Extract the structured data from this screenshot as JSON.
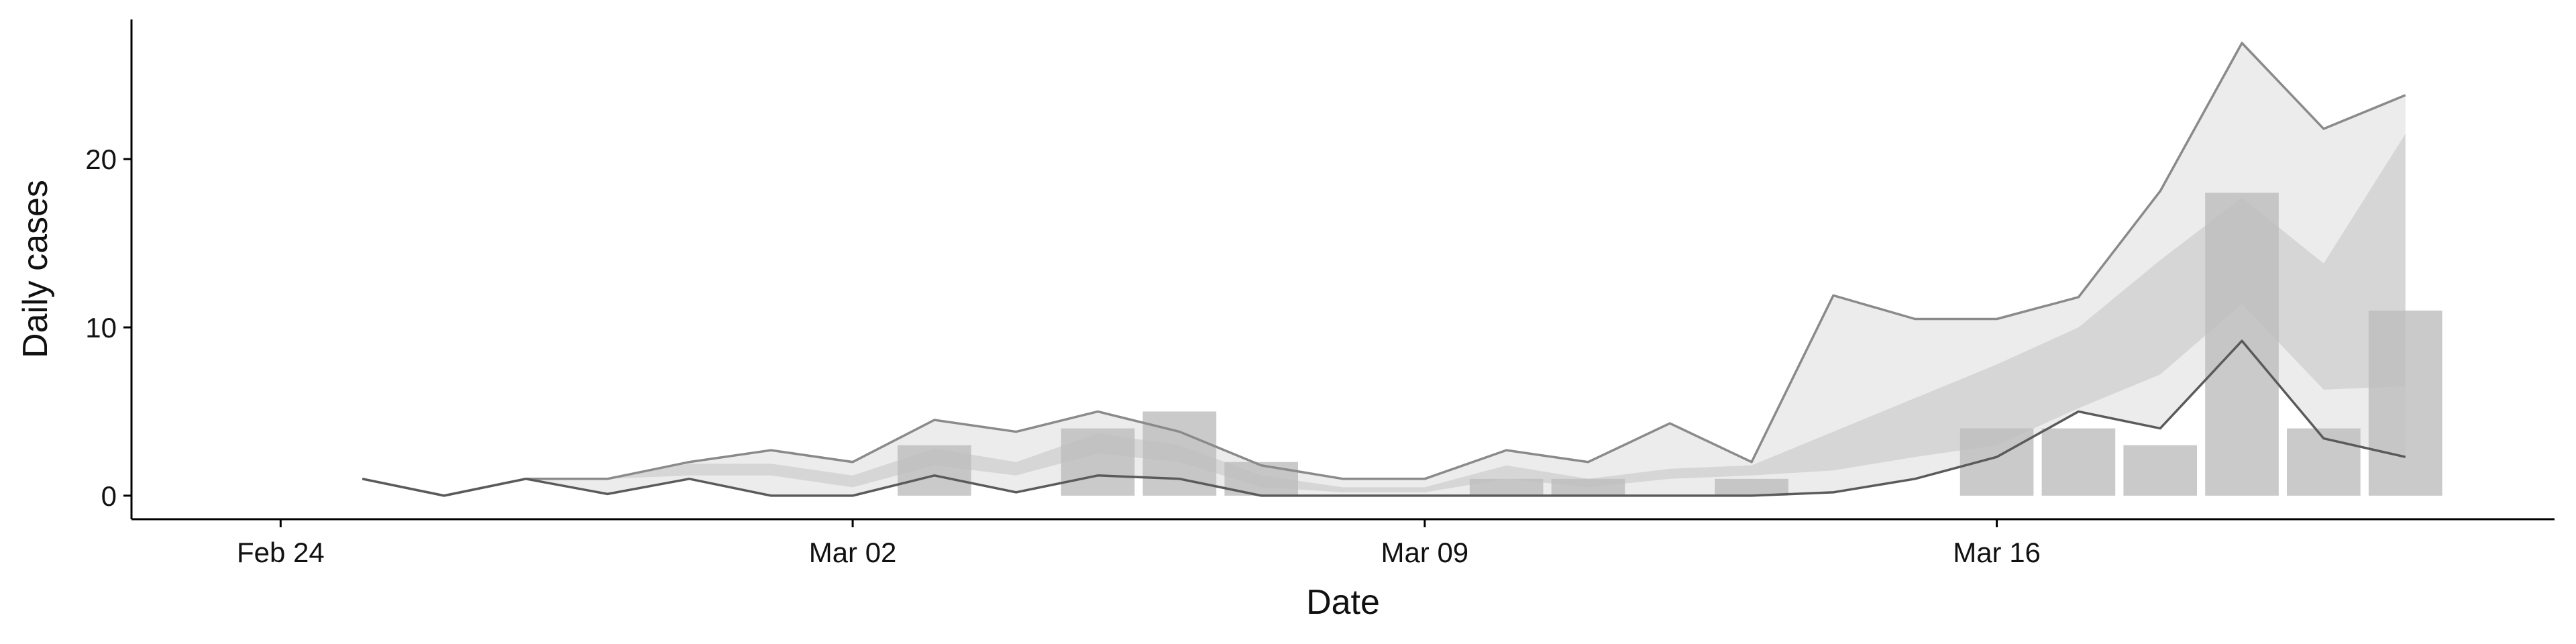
{
  "chart_data": {
    "type": "line",
    "x_label": "Date",
    "y_label": "Daily cases",
    "x": [
      "Feb 24",
      "Feb 25",
      "Feb 26",
      "Feb 27",
      "Feb 28",
      "Feb 29",
      "Mar 01",
      "Mar 02",
      "Mar 03",
      "Mar 04",
      "Mar 05",
      "Mar 06",
      "Mar 07",
      "Mar 08",
      "Mar 09",
      "Mar 10",
      "Mar 11",
      "Mar 12",
      "Mar 13",
      "Mar 14",
      "Mar 15",
      "Mar 16",
      "Mar 17",
      "Mar 18",
      "Mar 19",
      "Mar 20",
      "Mar 21"
    ],
    "xticks": [
      "Feb 24",
      "Mar 02",
      "Mar 09",
      "Mar 16"
    ],
    "bars": {
      "color": "#bdbdbd",
      "values": [
        null,
        0,
        0,
        0,
        0,
        0,
        0,
        0,
        3,
        0,
        4,
        5,
        2,
        0,
        0,
        1,
        1,
        0,
        1,
        0,
        0,
        4,
        4,
        3,
        18,
        4,
        11
      ]
    },
    "outer_band": {
      "color": "#ececec",
      "low": [
        null,
        1,
        0,
        1,
        0.1,
        1,
        0,
        0,
        1.2,
        0.2,
        1.2,
        1,
        0,
        0,
        0,
        0,
        0,
        0,
        0,
        0.2,
        1,
        2.3,
        5,
        4,
        9.2,
        3.4,
        2.3
      ],
      "high": [
        null,
        1,
        0,
        1,
        1,
        2,
        2.7,
        2,
        4.5,
        3.8,
        5,
        3.8,
        1.8,
        1,
        1,
        2.7,
        2,
        4.3,
        2,
        11.9,
        10.5,
        10.5,
        11.8,
        18.1,
        26.9,
        21.8,
        23.8
      ]
    },
    "inner_band": {
      "color": "#d6d6d6",
      "low": [
        null,
        null,
        null,
        null,
        1,
        1.2,
        1.2,
        0.5,
        1.8,
        1.2,
        2.5,
        2,
        0.5,
        0.2,
        0.2,
        1,
        0.5,
        1,
        1.2,
        1.5,
        2.3,
        3,
        5.2,
        7.2,
        11.4,
        6.3,
        6.5
      ],
      "high": [
        null,
        null,
        null,
        null,
        1,
        1.9,
        1.9,
        1.2,
        2.8,
        2,
        3.7,
        3,
        1.2,
        0.5,
        0.5,
        1.8,
        1,
        1.6,
        1.8,
        3.8,
        5.8,
        7.8,
        10,
        14,
        17.7,
        13.8,
        21.5
      ]
    },
    "upper_line_color": "#8a8a8a",
    "lower_line_color": "#5a5a5a",
    "ylim": [
      -1.4,
      28.3
    ],
    "yticks": [
      0,
      10,
      20
    ]
  }
}
